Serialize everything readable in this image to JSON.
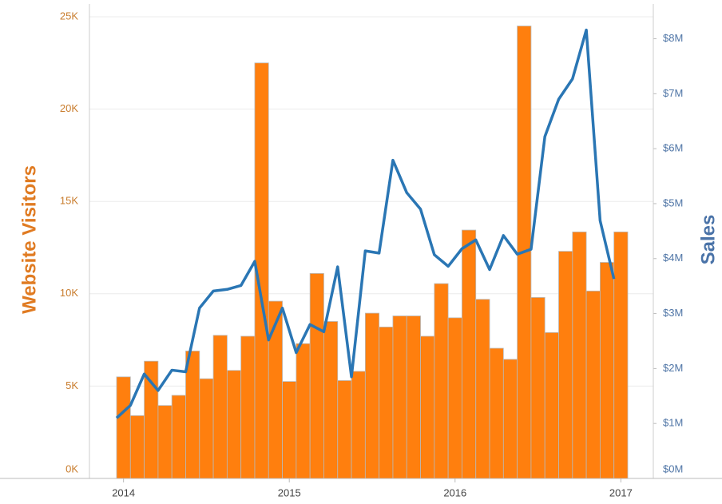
{
  "chart_data": {
    "type": "bar",
    "categories": [
      "2014",
      null,
      null,
      null,
      null,
      null,
      null,
      null,
      null,
      null,
      null,
      null,
      "2015",
      null,
      null,
      null,
      null,
      null,
      null,
      null,
      null,
      null,
      null,
      null,
      "2016",
      null,
      null,
      null,
      null,
      null,
      null,
      null,
      null,
      null,
      null,
      null,
      "2017"
    ],
    "ylabel": "Website Visitors",
    "y2label": "Sales",
    "ylim": [
      0,
      25000
    ],
    "yticks": [
      {
        "value": 0,
        "label": "0K"
      },
      {
        "value": 5000,
        "label": "5K"
      },
      {
        "value": 10000,
        "label": "10K"
      },
      {
        "value": 15000,
        "label": "15K"
      },
      {
        "value": 20000,
        "label": "20K"
      },
      {
        "value": 25000,
        "label": "25K"
      }
    ],
    "y2lim": [
      0,
      8400000
    ],
    "y2ticks": [
      {
        "value": 0,
        "label": "$0M"
      },
      {
        "value": 1000000,
        "label": "$1M"
      },
      {
        "value": 2000000,
        "label": "$2M"
      },
      {
        "value": 3000000,
        "label": "$3M"
      },
      {
        "value": 4000000,
        "label": "$4M"
      },
      {
        "value": 5000000,
        "label": "$5M"
      },
      {
        "value": 6000000,
        "label": "$6M"
      },
      {
        "value": 7000000,
        "label": "$7M"
      },
      {
        "value": 8000000,
        "label": "$8M"
      }
    ],
    "grid": true,
    "series": [
      {
        "name": "Website Visitors",
        "type": "bar",
        "color": "#ff7f0e",
        "values": [
          5500,
          3400,
          6350,
          3950,
          4500,
          6900,
          5400,
          7750,
          5850,
          7700,
          22500,
          9600,
          5250,
          7300,
          11100,
          8500,
          5300,
          5800,
          8950,
          8200,
          8800,
          8800,
          7700,
          10550,
          8700,
          13450,
          9700,
          7050,
          6450,
          24500,
          9800,
          7900,
          12300,
          13350,
          10150,
          11700,
          13350
        ]
      },
      {
        "name": "Sales",
        "type": "line",
        "axis": "y2",
        "color": "#2a76b4",
        "values": [
          1100000,
          1330000,
          1900000,
          1600000,
          1970000,
          1940000,
          3100000,
          3410000,
          3440000,
          3510000,
          3950000,
          2520000,
          3100000,
          2290000,
          2800000,
          2670000,
          3850000,
          1850000,
          4140000,
          4100000,
          5790000,
          5200000,
          4900000,
          4070000,
          3860000,
          4180000,
          4340000,
          3800000,
          4420000,
          4080000,
          4170000,
          6220000,
          6900000,
          7270000,
          8160000,
          4690000,
          3630000
        ]
      }
    ]
  }
}
